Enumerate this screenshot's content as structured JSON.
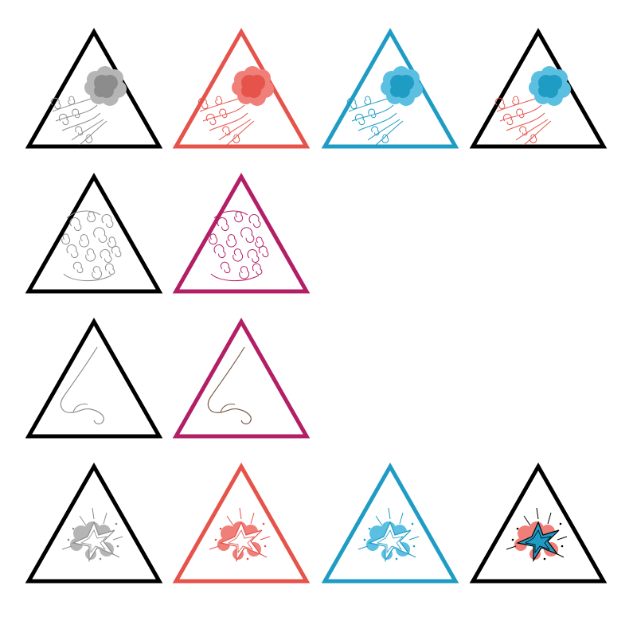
{
  "colors": {
    "black": "#000000",
    "gray": "#8c8c8c",
    "gray_light": "#b5b5b5",
    "red": "#e5534b",
    "red_light": "#ef7f78",
    "blue": "#1f9cc4",
    "blue_light": "#5bbfe2",
    "magenta": "#b21f66",
    "brown": "#7a5a45",
    "white": "#ffffff"
  },
  "icons": [
    {
      "id": "smoke-black",
      "motif": "smoke-cloud",
      "frame": "black",
      "fill": "gray",
      "fill_light": "gray_light",
      "swirl": "gray"
    },
    {
      "id": "smoke-red",
      "motif": "smoke-cloud",
      "frame": "red",
      "fill": "red",
      "fill_light": "red_light",
      "swirl": "red"
    },
    {
      "id": "smoke-blue",
      "motif": "smoke-cloud",
      "frame": "blue",
      "fill": "blue",
      "fill_light": "blue_light",
      "swirl": "blue"
    },
    {
      "id": "smoke-mixed",
      "motif": "smoke-cloud",
      "frame": "black",
      "fill": "blue",
      "fill_light": "blue_light",
      "swirl": "red"
    },
    {
      "id": "swirls-black",
      "motif": "swirls",
      "frame": "black",
      "swirl": "gray"
    },
    {
      "id": "swirls-magenta",
      "motif": "swirls",
      "frame": "magenta",
      "swirl": "magenta"
    },
    {
      "id": "nose-black",
      "motif": "nose",
      "frame": "black",
      "swirl": "gray"
    },
    {
      "id": "nose-magenta",
      "motif": "nose",
      "frame": "magenta",
      "swirl": "brown"
    },
    {
      "id": "explosion-black",
      "motif": "explosion",
      "frame": "black",
      "fill": "gray_light",
      "star": "white",
      "accent": "gray"
    },
    {
      "id": "explosion-red",
      "motif": "explosion",
      "frame": "red",
      "fill": "red_light",
      "star": "white",
      "accent": "red"
    },
    {
      "id": "explosion-blue",
      "motif": "explosion",
      "frame": "blue",
      "fill": "blue_light",
      "star": "white",
      "accent": "blue"
    },
    {
      "id": "explosion-mixed",
      "motif": "explosion",
      "frame": "black",
      "fill": "red_light",
      "star": "blue",
      "accent": "black"
    }
  ]
}
